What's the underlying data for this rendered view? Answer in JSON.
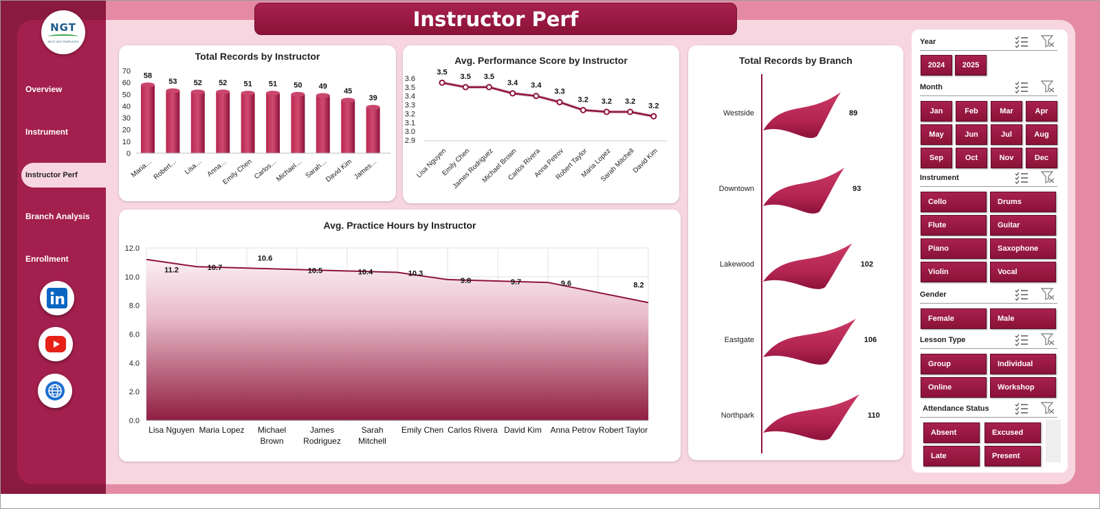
{
  "title": "Instructor Perf",
  "logo": {
    "text": "NGT",
    "subtext": "NEXT GEN TEMPLATES"
  },
  "nav": {
    "items": [
      "Overview",
      "Instrument",
      "Instructor Perf",
      "Branch Analysis",
      "Enrollment"
    ],
    "active": "Instructor Perf"
  },
  "social": [
    "linkedin-icon",
    "youtube-icon",
    "globe-icon"
  ],
  "colors": {
    "accent": "#a31f4d",
    "accent_dark": "#8a1238",
    "page_bg": "#f8d6e1",
    "outer_bg": "#e58aa5"
  },
  "chart_data": [
    {
      "id": "records",
      "type": "bar",
      "title": "Total Records by Instructor",
      "categories": [
        "Maria…",
        "Robert…",
        "Lisa…",
        "Anna…",
        "Emily Chen",
        "Carlos…",
        "Michael…",
        "Sarah…",
        "David Kim",
        "James…"
      ],
      "values": [
        58,
        53,
        52,
        52,
        51,
        51,
        50,
        49,
        45,
        39
      ],
      "ylim": [
        0,
        70
      ],
      "yticks": [
        0,
        10,
        20,
        30,
        40,
        50,
        60,
        70
      ]
    },
    {
      "id": "score",
      "type": "line",
      "title": "Avg. Performance  Score by Instructor",
      "categories": [
        "Lisa Nguyen",
        "Emily Chen",
        "James Rodriguez",
        "Michael Brown",
        "Carlos Rivera",
        "Anna Petrov",
        "Robert Taylor",
        "Maria Lopez",
        "Sarah Mitchell",
        "David Kim"
      ],
      "values": [
        3.5,
        3.5,
        3.5,
        3.4,
        3.4,
        3.3,
        3.2,
        3.2,
        3.2,
        3.2
      ],
      "plot_values": [
        3.55,
        3.5,
        3.5,
        3.43,
        3.4,
        3.33,
        3.24,
        3.22,
        3.22,
        3.17
      ],
      "ylim": [
        2.9,
        3.6
      ],
      "yticks": [
        "2.9",
        "3.0",
        "3.1",
        "3.2",
        "3.3",
        "3.4",
        "3.5",
        "3.6"
      ]
    },
    {
      "id": "hours",
      "type": "area",
      "title": "Avg. Practice Hours by Instructor",
      "categories": [
        [
          "Lisa Nguyen"
        ],
        [
          "Maria Lopez"
        ],
        [
          "Michael",
          "Brown"
        ],
        [
          "James",
          "Rodriguez"
        ],
        [
          "Sarah",
          "Mitchell"
        ],
        [
          "Emily Chen"
        ],
        [
          "Carlos Rivera"
        ],
        [
          "David Kim"
        ],
        [
          "Anna Petrov"
        ],
        [
          "Robert Taylor"
        ]
      ],
      "values": [
        11.2,
        10.7,
        10.6,
        10.5,
        10.4,
        10.3,
        9.8,
        9.7,
        9.6,
        8.2
      ],
      "ylim": [
        0,
        12
      ],
      "yticks": [
        "0.0",
        "2.0",
        "4.0",
        "6.0",
        "8.0",
        "10.0",
        "12.0"
      ]
    },
    {
      "id": "branch",
      "type": "bar",
      "orientation": "horizontal",
      "title": "Total Records by Branch",
      "categories": [
        "Westside",
        "Downtown",
        "Lakewood",
        "Eastgate",
        "Northpark"
      ],
      "values": [
        89,
        93,
        102,
        106,
        110
      ]
    }
  ],
  "slicers": [
    {
      "id": "year",
      "label": "Year",
      "options": [
        "2024",
        "2025"
      ]
    },
    {
      "id": "month",
      "label": "Month",
      "options": [
        "Jan",
        "Feb",
        "Mar",
        "Apr",
        "May",
        "Jun",
        "Jul",
        "Aug",
        "Sep",
        "Oct",
        "Nov",
        "Dec"
      ]
    },
    {
      "id": "instrument",
      "label": "Instrument",
      "options": [
        "Cello",
        "Drums",
        "Flute",
        "Guitar",
        "Piano",
        "Saxophone",
        "Violin",
        "Vocal"
      ]
    },
    {
      "id": "gender",
      "label": "Gender",
      "options": [
        "Female",
        "Male"
      ]
    },
    {
      "id": "lesson",
      "label": "Lesson Type",
      "options": [
        "Group",
        "Individual",
        "Online",
        "Workshop"
      ]
    },
    {
      "id": "attendance",
      "label": "Attendance Status",
      "options": [
        "Absent",
        "Excused",
        "Late",
        "Present"
      ]
    }
  ]
}
